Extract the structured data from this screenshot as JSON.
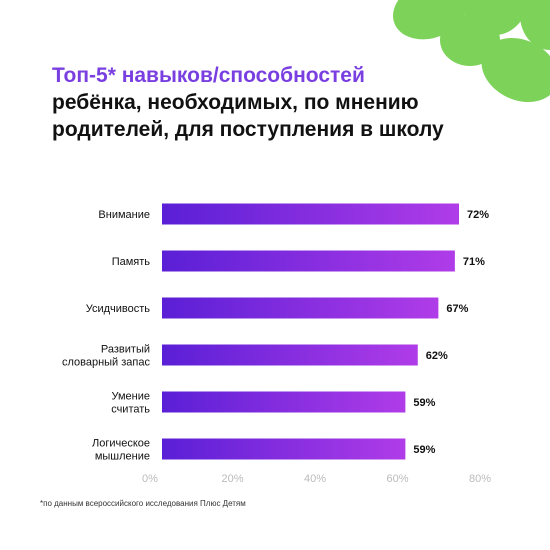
{
  "title": {
    "highlight": "Топ-5* навыков/способностей",
    "rest": "ребёнка, необходимых, по мнению родителей, для поступления в школу"
  },
  "colors": {
    "accent": "#7a3fe0",
    "bar_start": "#5a1fd6",
    "bar_end": "#b03ce8",
    "flower": "#7dd35a"
  },
  "chart_data": {
    "type": "bar",
    "orientation": "horizontal",
    "categories": [
      [
        "Внимание"
      ],
      [
        "Память"
      ],
      [
        "Усидчивость"
      ],
      [
        "Развитый",
        "словарный запас"
      ],
      [
        "Умение",
        "считать"
      ],
      [
        "Логическое",
        "мышление"
      ]
    ],
    "values": [
      72,
      71,
      67,
      62,
      59,
      59
    ],
    "value_labels": [
      "72%",
      "71%",
      "67%",
      "62%",
      "59%",
      "59%"
    ],
    "xlim": [
      0,
      80
    ],
    "x_ticks": [
      0,
      20,
      40,
      60,
      80
    ],
    "x_tick_labels": [
      "0%",
      "20%",
      "40%",
      "60%",
      "80%"
    ],
    "grid": false
  },
  "footnote": "*по данным всероссийского исследования Плюс Детям"
}
